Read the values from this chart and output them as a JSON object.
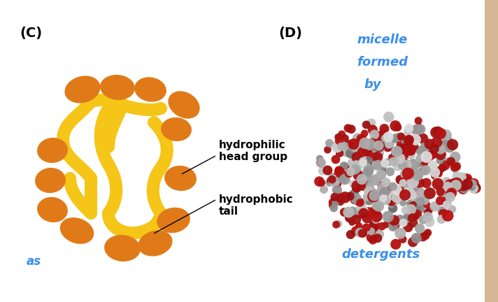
{
  "bg_color": "#ffffff",
  "label_C": "(C)",
  "label_D": "(D)",
  "head_color": "#E07A18",
  "tail_color": "#F5C518",
  "annotation1": "hydrophilic\nhead group",
  "annotation2": "hydrophobic\ntail",
  "annotation_fontsize": 11,
  "annotation_fontweight": "bold",
  "handwritten_color": "#3B8FE8",
  "handwritten_fontsize": 12,
  "label_fontsize": 14,
  "label_fontweight": "bold"
}
